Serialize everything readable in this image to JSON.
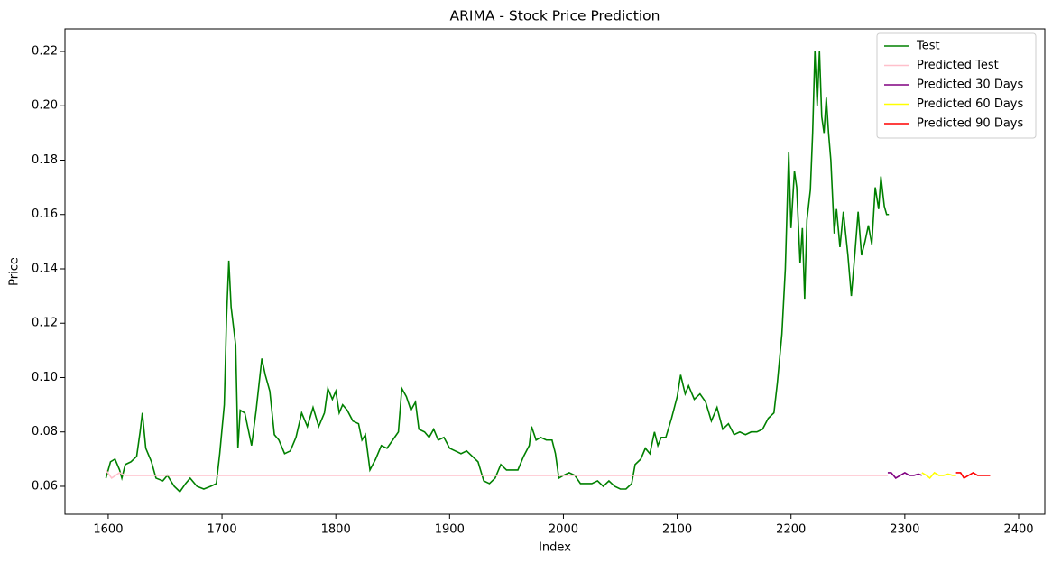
{
  "chart_data": {
    "type": "line",
    "title": "ARIMA - Stock Price Prediction",
    "x_label": "Index",
    "y_label": "Price",
    "xlim": [
      1562,
      2423
    ],
    "ylim": [
      0.0497,
      0.2283
    ],
    "xticks": [
      1600,
      1700,
      1800,
      1900,
      2000,
      2100,
      2200,
      2300,
      2400
    ],
    "yticks": [
      0.06,
      0.08,
      {
        "value": 0.1,
        "label": "0.10"
      },
      0.12,
      0.14,
      0.16,
      0.18,
      {
        "value": 0.2,
        "label": "0.20"
      },
      0.22
    ],
    "legend": "upper right",
    "series": [
      {
        "name": "Test",
        "color": "green",
        "x": [
          1598,
          1602,
          1606,
          1610,
          1612,
          1615,
          1620,
          1625,
          1628,
          1630,
          1633,
          1638,
          1642,
          1648,
          1652,
          1658,
          1663,
          1668,
          1672,
          1678,
          1684,
          1690,
          1695,
          1698,
          1702,
          1704,
          1706,
          1708,
          1712,
          1714,
          1716,
          1720,
          1726,
          1730,
          1735,
          1738,
          1742,
          1746,
          1750,
          1755,
          1760,
          1765,
          1770,
          1775,
          1780,
          1785,
          1790,
          1793,
          1797,
          1800,
          1803,
          1806,
          1810,
          1815,
          1820,
          1823,
          1826,
          1830,
          1835,
          1840,
          1845,
          1850,
          1855,
          1858,
          1862,
          1866,
          1870,
          1873,
          1878,
          1882,
          1886,
          1890,
          1895,
          1900,
          1905,
          1910,
          1915,
          1920,
          1925,
          1930,
          1935,
          1940,
          1945,
          1950,
          1955,
          1960,
          1965,
          1970,
          1972,
          1976,
          1980,
          1985,
          1990,
          1993,
          1996,
          2000,
          2005,
          2010,
          2015,
          2020,
          2025,
          2030,
          2035,
          2040,
          2045,
          2050,
          2055,
          2060,
          2063,
          2068,
          2072,
          2076,
          2080,
          2083,
          2086,
          2090,
          2095,
          2100,
          2103,
          2107,
          2110,
          2115,
          2120,
          2125,
          2130,
          2135,
          2140,
          2145,
          2150,
          2155,
          2160,
          2165,
          2170,
          2175,
          2180,
          2185,
          2188,
          2192,
          2195,
          2198,
          2200,
          2203,
          2205,
          2208,
          2210,
          2212,
          2214,
          2217,
          2219,
          2221,
          2223,
          2225,
          2227,
          2229,
          2231,
          2233,
          2235,
          2238,
          2240,
          2243,
          2246,
          2250,
          2253,
          2256,
          2259,
          2262,
          2265,
          2268,
          2271,
          2274,
          2277,
          2279,
          2282,
          2284,
          2286
        ],
        "values": [
          0.063,
          0.069,
          0.07,
          0.066,
          0.063,
          0.068,
          0.069,
          0.071,
          0.08,
          0.087,
          0.074,
          0.069,
          0.063,
          0.062,
          0.064,
          0.06,
          0.058,
          0.061,
          0.063,
          0.06,
          0.059,
          0.06,
          0.061,
          0.072,
          0.09,
          0.122,
          0.143,
          0.126,
          0.112,
          0.074,
          0.088,
          0.087,
          0.075,
          0.088,
          0.107,
          0.101,
          0.095,
          0.079,
          0.077,
          0.072,
          0.073,
          0.078,
          0.087,
          0.082,
          0.089,
          0.082,
          0.087,
          0.096,
          0.092,
          0.095,
          0.087,
          0.09,
          0.088,
          0.084,
          0.083,
          0.077,
          0.079,
          0.066,
          0.07,
          0.075,
          0.074,
          0.077,
          0.08,
          0.096,
          0.093,
          0.088,
          0.091,
          0.081,
          0.08,
          0.078,
          0.081,
          0.077,
          0.078,
          0.074,
          0.073,
          0.072,
          0.073,
          0.071,
          0.069,
          0.062,
          0.061,
          0.063,
          0.068,
          0.066,
          0.066,
          0.066,
          0.071,
          0.075,
          0.082,
          0.077,
          0.078,
          0.077,
          0.077,
          0.072,
          0.063,
          0.064,
          0.065,
          0.064,
          0.061,
          0.061,
          0.061,
          0.062,
          0.06,
          0.062,
          0.06,
          0.059,
          0.059,
          0.061,
          0.068,
          0.07,
          0.074,
          0.072,
          0.08,
          0.075,
          0.078,
          0.078,
          0.085,
          0.093,
          0.101,
          0.094,
          0.097,
          0.092,
          0.094,
          0.091,
          0.084,
          0.089,
          0.081,
          0.083,
          0.079,
          0.08,
          0.079,
          0.08,
          0.08,
          0.081,
          0.085,
          0.087,
          0.098,
          0.116,
          0.14,
          0.183,
          0.155,
          0.176,
          0.17,
          0.142,
          0.155,
          0.129,
          0.158,
          0.169,
          0.19,
          0.22,
          0.2,
          0.22,
          0.196,
          0.19,
          0.203,
          0.19,
          0.18,
          0.153,
          0.162,
          0.148,
          0.161,
          0.145,
          0.13,
          0.145,
          0.161,
          0.145,
          0.15,
          0.156,
          0.149,
          0.17,
          0.162,
          0.174,
          0.163,
          0.16,
          0.16
        ]
      },
      {
        "name": "Predicted Test",
        "color": "pink",
        "x": [
          1598,
          1603,
          1610,
          1615,
          2285
        ],
        "values": [
          0.066,
          0.063,
          0.065,
          0.064,
          0.064
        ]
      },
      {
        "name": "Predicted 30 Days",
        "color": "purple",
        "x": [
          2285,
          2288,
          2292,
          2296,
          2300,
          2304,
          2308,
          2312,
          2315
        ],
        "values": [
          0.065,
          0.065,
          0.063,
          0.064,
          0.065,
          0.064,
          0.064,
          0.0645,
          0.064
        ]
      },
      {
        "name": "Predicted 60 Days",
        "color": "yellow",
        "x": [
          2315,
          2319,
          2322,
          2326,
          2330,
          2334,
          2338,
          2342,
          2345
        ],
        "values": [
          0.065,
          0.064,
          0.063,
          0.065,
          0.064,
          0.064,
          0.0645,
          0.064,
          0.064
        ]
      },
      {
        "name": "Predicted 90 Days",
        "color": "red",
        "x": [
          2345,
          2349,
          2352,
          2356,
          2360,
          2364,
          2368,
          2372,
          2375
        ],
        "values": [
          0.065,
          0.065,
          0.063,
          0.064,
          0.065,
          0.064,
          0.064,
          0.064,
          0.064
        ]
      }
    ]
  }
}
